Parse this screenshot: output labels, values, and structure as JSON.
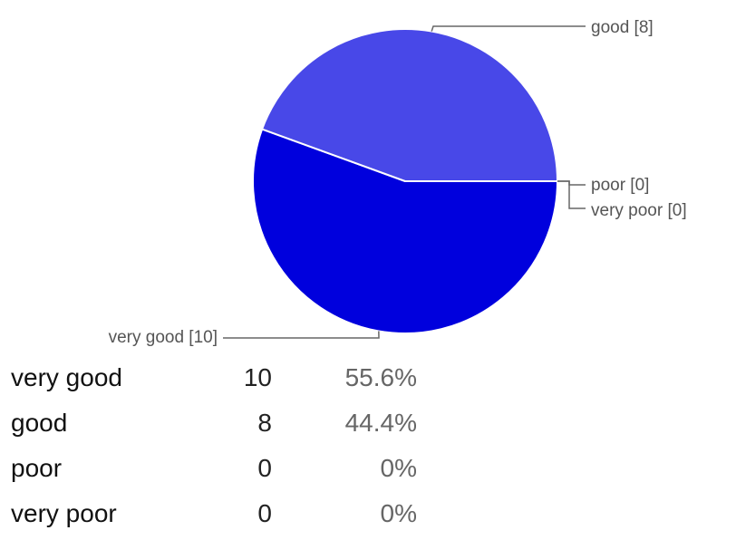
{
  "chart_data": {
    "type": "pie",
    "categories": [
      "very good",
      "good",
      "poor",
      "very poor"
    ],
    "values": [
      10,
      8,
      0,
      0
    ],
    "percentages": [
      "55.6%",
      "44.4%",
      "0%",
      "0%"
    ],
    "slice_labels": [
      "very good [10]",
      "good [8]",
      "poor [0]",
      "very poor [0]"
    ],
    "colors": [
      "#0000dd",
      "#4848e8",
      "#dc3912",
      "#ff9900"
    ],
    "title": ""
  },
  "table": {
    "rows": [
      {
        "name": "very good",
        "count": "10",
        "percent": "55.6%"
      },
      {
        "name": "good",
        "count": "8",
        "percent": "44.4%"
      },
      {
        "name": "poor",
        "count": "0",
        "percent": "0%"
      },
      {
        "name": "very poor",
        "count": "0",
        "percent": "0%"
      }
    ]
  }
}
